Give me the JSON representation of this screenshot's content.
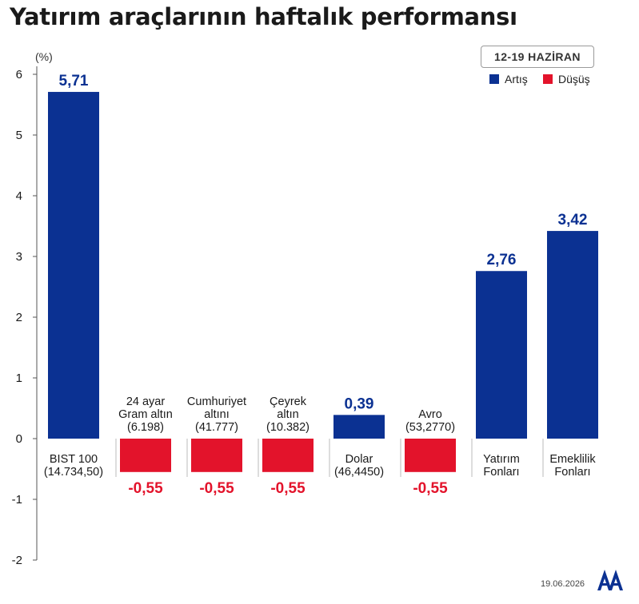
{
  "title": "Yatırım araçlarının haftalık performansı",
  "period": "12-19 HAZİRAN",
  "legend": [
    {
      "label": "Artış",
      "color": "#0b3192"
    },
    {
      "label": "Düşüş",
      "color": "#e3132b"
    }
  ],
  "unit": "(%)",
  "footer_date": "19.06.2026",
  "logo_text": "AA",
  "chart_data": {
    "type": "bar",
    "title": "Yatırım araçlarının haftalık performansı",
    "ylim": [
      -2,
      6
    ],
    "yticks": [
      "-2",
      "-1",
      "0",
      "1",
      "2",
      "3",
      "4",
      "5",
      "6"
    ],
    "grid": false,
    "colors": {
      "up": "#0b3192",
      "down": "#e3132b"
    },
    "categories": [
      {
        "lines": [
          "BIST 100",
          "(14.734,50)"
        ],
        "value": 5.71,
        "label": "5,71"
      },
      {
        "lines": [
          "24 ayar",
          "Gram altın",
          "(6.198)"
        ],
        "value": -0.55,
        "label": "-0,55"
      },
      {
        "lines": [
          "Cumhuriyet",
          "altını",
          "(41.777)"
        ],
        "value": -0.55,
        "label": "-0,55"
      },
      {
        "lines": [
          "Çeyrek",
          "altın",
          "(10.382)"
        ],
        "value": -0.55,
        "label": "-0,55"
      },
      {
        "lines": [
          "Dolar",
          "(46,4450)"
        ],
        "value": 0.39,
        "label": "0,39"
      },
      {
        "lines": [
          "Avro",
          "(53,2770)"
        ],
        "value": -0.55,
        "label": "-0,55"
      },
      {
        "lines": [
          "Yatırım",
          "Fonları"
        ],
        "value": 2.76,
        "label": "2,76"
      },
      {
        "lines": [
          "Emeklilik",
          "Fonları"
        ],
        "value": 3.42,
        "label": "3,42"
      }
    ]
  }
}
